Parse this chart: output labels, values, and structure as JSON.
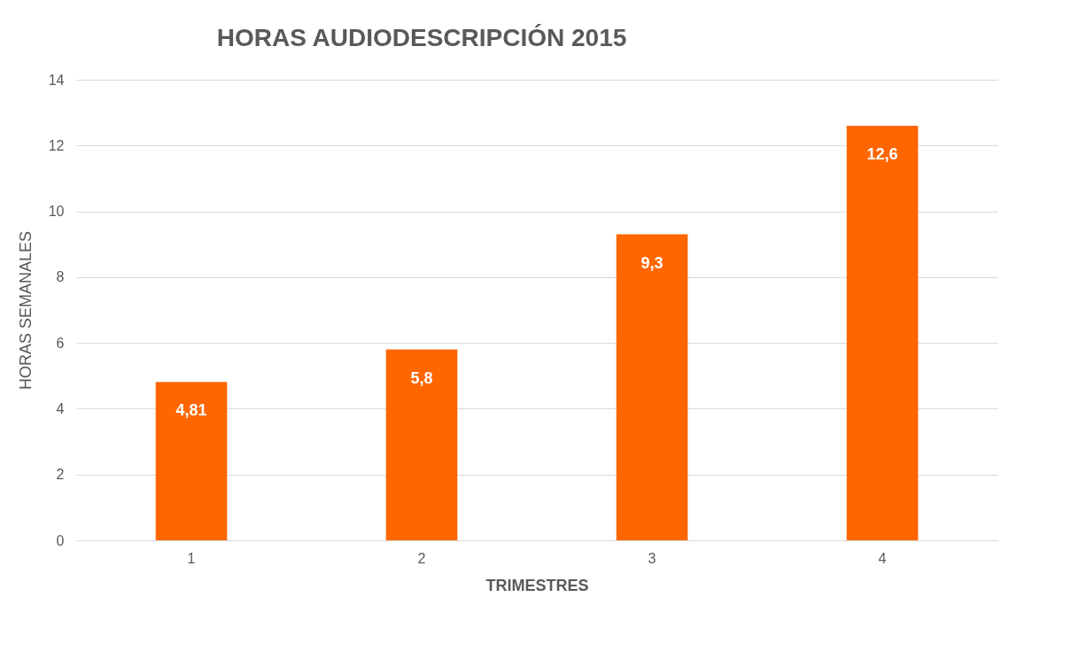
{
  "chart_data": {
    "type": "bar",
    "title": "HORAS AUDIODESCRIPCIÓN 2015",
    "xlabel": "TRIMESTRES",
    "ylabel": "HORAS SEMANALES",
    "categories": [
      "1",
      "2",
      "3",
      "4"
    ],
    "values": [
      4.81,
      5.8,
      9.3,
      12.6
    ],
    "value_labels": [
      "4,81",
      "5,8",
      "9,3",
      "12,6"
    ],
    "color": "#ff6600",
    "ylim": [
      0,
      14
    ],
    "yticks": [
      0,
      2,
      4,
      6,
      8,
      10,
      12,
      14
    ],
    "grid": "y"
  }
}
